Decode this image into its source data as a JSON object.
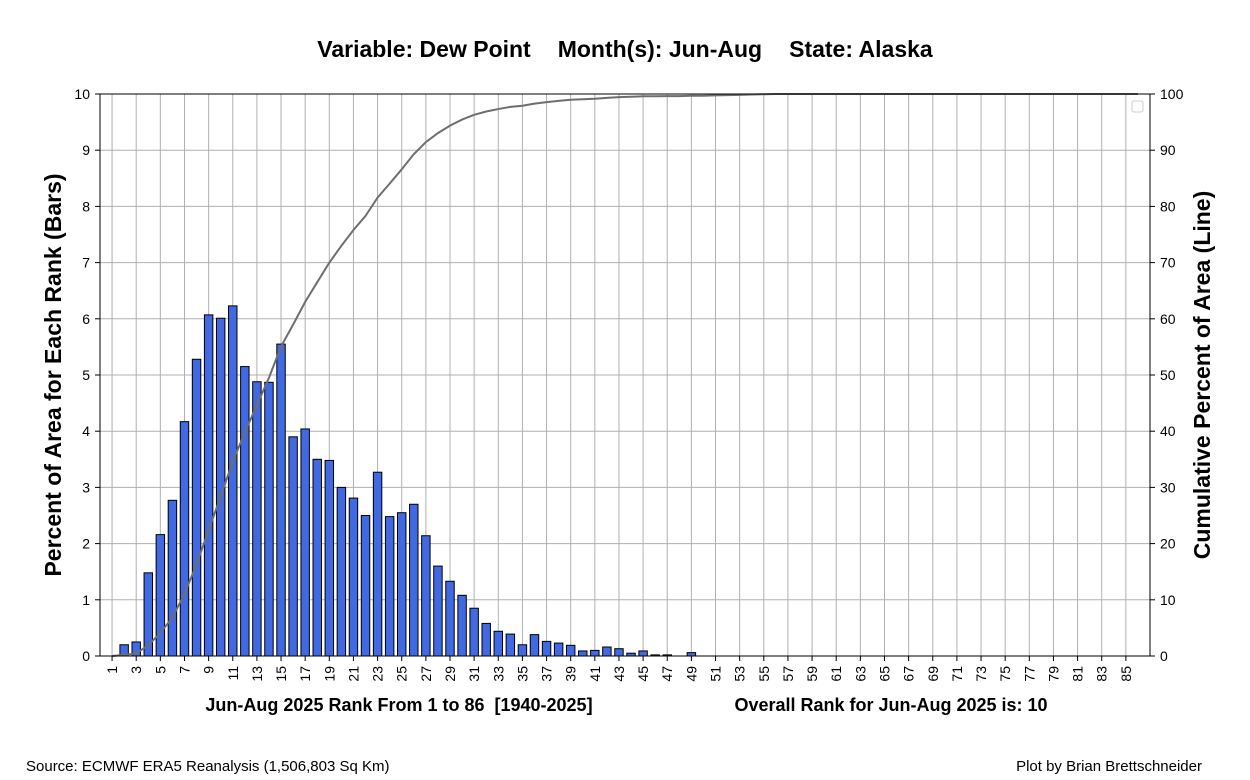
{
  "header": {
    "title_parts": [
      "Variable: Dew Point",
      "Month(s): Jun-Aug",
      "State: Alaska"
    ]
  },
  "x_info": {
    "left": "Jun-Aug 2025 Rank From 1 to 86  [1940-2025]",
    "right": "Overall Rank for Jun-Aug 2025 is: 10"
  },
  "footer": {
    "source": "Source: ECMWF ERA5 Reanalysis (1,506,803 Sq Km)",
    "credit": "Plot by Brian Brettschneider"
  },
  "colors": {
    "bar_fill": "#4169e1",
    "bar_edge": "#000000",
    "line": "#6e6e6e",
    "grid": "#b0b0b0"
  },
  "chart_data": {
    "type": "bar",
    "title": "Variable: Dew Point    Month(s): Jun-Aug    State: Alaska",
    "xlabel": "Jun-Aug 2025 Rank From 1 to 86  [1940-2025]",
    "ylabel": "Percent of Area for Each Rank (Bars)",
    "y2label": "Cumulative Percent of Area (Line)",
    "x": [
      1,
      2,
      3,
      4,
      5,
      6,
      7,
      8,
      9,
      10,
      11,
      12,
      13,
      14,
      15,
      16,
      17,
      18,
      19,
      20,
      21,
      22,
      23,
      24,
      25,
      26,
      27,
      28,
      29,
      30,
      31,
      32,
      33,
      34,
      35,
      36,
      37,
      38,
      39,
      40,
      41,
      42,
      43,
      44,
      45,
      46,
      47,
      48,
      49,
      50,
      51,
      52,
      53,
      54,
      55,
      56,
      57,
      58,
      59,
      60,
      61,
      62,
      63,
      64,
      65,
      66,
      67,
      68,
      69,
      70,
      71,
      72,
      73,
      74,
      75,
      76,
      77,
      78,
      79,
      80,
      81,
      82,
      83,
      84,
      85,
      86
    ],
    "x_tick_labels": [
      "1",
      "3",
      "5",
      "7",
      "9",
      "11",
      "13",
      "15",
      "17",
      "19",
      "21",
      "23",
      "25",
      "27",
      "29",
      "31",
      "33",
      "35",
      "37",
      "39",
      "41",
      "43",
      "45",
      "47",
      "49",
      "51",
      "53",
      "55",
      "57",
      "59",
      "61",
      "63",
      "65",
      "67",
      "69",
      "71",
      "73",
      "75",
      "77",
      "79",
      "81",
      "83",
      "85"
    ],
    "ylim": [
      0,
      10
    ],
    "y_ticks": [
      "0",
      "1",
      "2",
      "3",
      "4",
      "5",
      "6",
      "7",
      "8",
      "9",
      "10"
    ],
    "y2lim": [
      0,
      100
    ],
    "y2_ticks": [
      "0",
      "10",
      "20",
      "30",
      "40",
      "50",
      "60",
      "70",
      "80",
      "90",
      "100"
    ],
    "grid": true,
    "legend": "top-right (empty)",
    "series": [
      {
        "type": "bar",
        "values": [
          0,
          0.2,
          0.25,
          1.48,
          2.16,
          2.77,
          4.17,
          5.28,
          6.07,
          6.01,
          6.23,
          5.15,
          4.88,
          4.87,
          5.55,
          3.9,
          4.04,
          3.5,
          3.48,
          3.0,
          2.81,
          2.5,
          3.27,
          2.48,
          2.55,
          2.7,
          2.14,
          1.6,
          1.33,
          1.08,
          0.85,
          0.58,
          0.44,
          0.39,
          0.2,
          0.38,
          0.26,
          0.23,
          0.19,
          0.09,
          0.1,
          0.16,
          0.13,
          0.05,
          0.09,
          0.02,
          0.02,
          0,
          0.06,
          0,
          0,
          0,
          0,
          0,
          0,
          0,
          0,
          0,
          0,
          0,
          0,
          0,
          0,
          0,
          0,
          0,
          0,
          0,
          0,
          0,
          0,
          0,
          0,
          0,
          0,
          0,
          0,
          0,
          0,
          0,
          0,
          0,
          0,
          0,
          0,
          0
        ]
      },
      {
        "type": "line",
        "axis": "right",
        "values": [
          0,
          0.2,
          0.45,
          1.93,
          4.09,
          6.86,
          11.03,
          16.31,
          22.38,
          28.39,
          34.62,
          39.77,
          44.65,
          49.52,
          55.07,
          58.97,
          63.01,
          66.51,
          69.99,
          72.99,
          75.8,
          78.3,
          81.57,
          84.05,
          86.6,
          89.3,
          91.44,
          93.04,
          94.37,
          95.45,
          96.3,
          96.88,
          97.32,
          97.71,
          97.91,
          98.29,
          98.55,
          98.78,
          98.97,
          99.06,
          99.16,
          99.32,
          99.45,
          99.5,
          99.59,
          99.61,
          99.63,
          99.63,
          99.69,
          99.7,
          99.75,
          99.8,
          99.85,
          99.9,
          99.95,
          100,
          100,
          100,
          100,
          100,
          100,
          100,
          100,
          100,
          100,
          100,
          100,
          100,
          100,
          100,
          100,
          100,
          100,
          100,
          100,
          100,
          100,
          100,
          100,
          100,
          100,
          100,
          100,
          100,
          100,
          100
        ]
      }
    ]
  }
}
